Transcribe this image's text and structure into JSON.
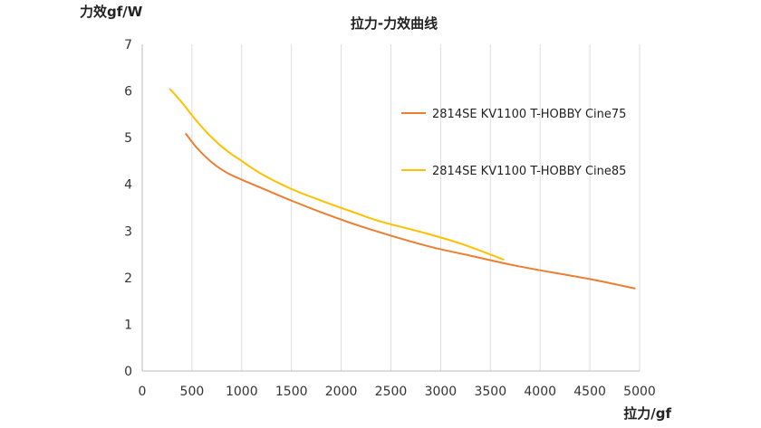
{
  "chart_data": {
    "type": "line",
    "title": "拉力-力效曲线",
    "xlabel": "拉力/gf",
    "ylabel": "力效gf/W",
    "xlim": [
      0,
      5000
    ],
    "ylim": [
      0,
      7
    ],
    "x_ticks": [
      0,
      500,
      1000,
      1500,
      2000,
      2500,
      3000,
      3500,
      4000,
      4500,
      5000
    ],
    "y_ticks": [
      0,
      1,
      2,
      3,
      4,
      5,
      6,
      7
    ],
    "grid": "vertical",
    "legend_position": "right",
    "series": [
      {
        "name": "2814SE KV1100 T-HOBBY Cine75",
        "color": "#ED7D31",
        "x": [
          440,
          550,
          700,
          850,
          1000,
          1200,
          1500,
          1800,
          2100,
          2500,
          2900,
          3300,
          3700,
          4100,
          4500,
          4950
        ],
        "y": [
          5.08,
          4.78,
          4.47,
          4.25,
          4.1,
          3.92,
          3.65,
          3.4,
          3.17,
          2.9,
          2.66,
          2.47,
          2.28,
          2.12,
          1.97,
          1.77
        ]
      },
      {
        "name": "2814SE KV1100 T-HOBBY Cine85",
        "color": "#FFC000",
        "x": [
          280,
          400,
          550,
          700,
          850,
          1000,
          1200,
          1500,
          1800,
          2100,
          2400,
          2800,
          3200,
          3630
        ],
        "y": [
          6.04,
          5.75,
          5.35,
          5.0,
          4.72,
          4.5,
          4.22,
          3.9,
          3.65,
          3.42,
          3.2,
          2.98,
          2.73,
          2.39
        ]
      }
    ]
  }
}
